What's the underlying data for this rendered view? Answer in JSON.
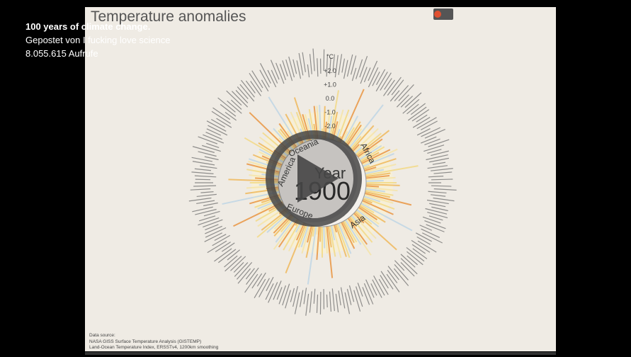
{
  "overlay": {
    "title": "100 years of climate change.",
    "author": "Gepostet von I fucking love science",
    "views": "8.055.615 Aufrufe"
  },
  "chart": {
    "title": "Temperature anomalies",
    "unit": "°C",
    "scale_labels": [
      "+2.0",
      "+1.0",
      "0.0",
      "-1.0",
      "-2.0"
    ],
    "regions": [
      "Oceania",
      "Africa",
      "Asia",
      "Europe",
      "America"
    ],
    "year_label": "Year",
    "year": "1900",
    "source": {
      "heading": "Data source:",
      "lines": [
        "NASA GISS Surface Temperature Analysis (GISTEMP)",
        "Land-Ocean Temperature Index, ERSSTv4, 1200km smoothing"
      ]
    }
  }
}
